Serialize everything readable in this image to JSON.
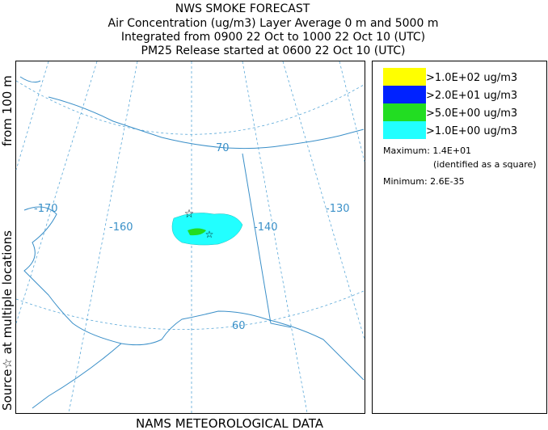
{
  "header": {
    "title": "NWS SMOKE FORECAST",
    "lines": [
      "Air Concentration (ug/m3) Layer Average    0 m and  5000 m",
      "Integrated from 0900 22 Oct to 1000 22 Oct 10 (UTC)",
      "PM25 Release started at 0600 22 Oct 10 (UTC)"
    ]
  },
  "side_label": {
    "source": "Source☆ at multiple locations",
    "height": "from   100 m"
  },
  "footer": "NAMS METEOROLOGICAL DATA",
  "map": {
    "graticule_labels": [
      "-170",
      "-160",
      "-140",
      "-130",
      "70",
      "60"
    ]
  },
  "legend": {
    "items": [
      {
        "label": ">1.0E+02 ug/m3",
        "color": "#ffff00"
      },
      {
        "label": ">2.0E+01 ug/m3",
        "color": "#0022ff"
      },
      {
        "label": ">5.0E+00 ug/m3",
        "color": "#22dd22"
      },
      {
        "label": ">1.0E+00 ug/m3",
        "color": "#22ffff"
      }
    ],
    "maximum": "Maximum: 1.4E+01",
    "maximum_note": "(identified as a square)",
    "minimum": "Minimum: 2.6E-35"
  }
}
